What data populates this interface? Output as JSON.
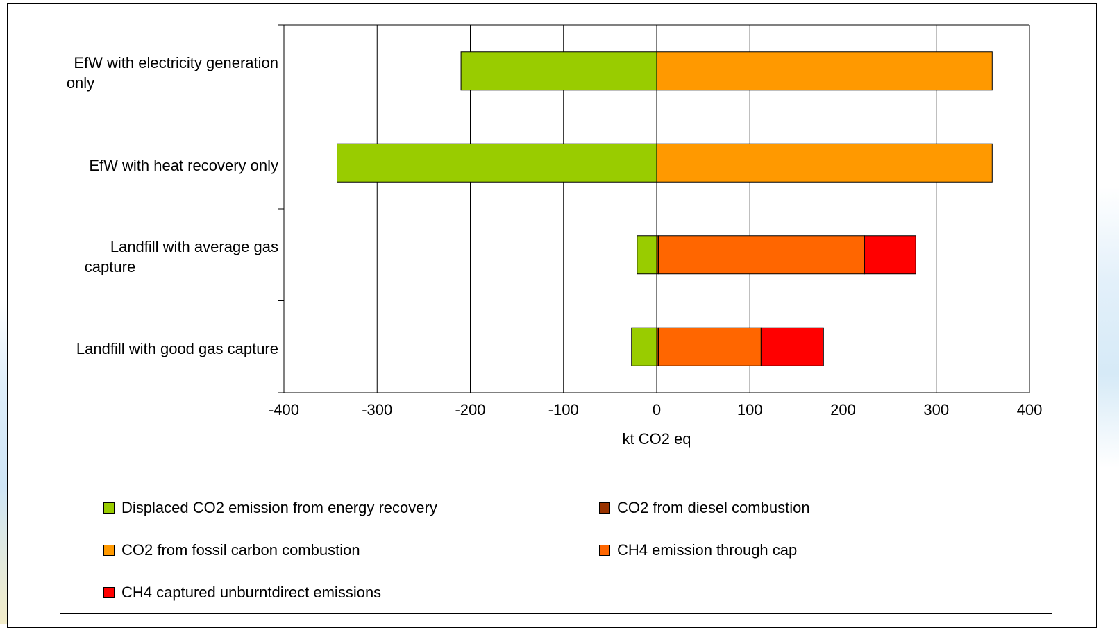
{
  "chart_data": {
    "type": "bar",
    "orientation": "horizontal",
    "stacked": true,
    "categories": [
      "EfW  with electricity generation only",
      "EfW  with heat recovery only",
      "Landfill with average gas capture",
      "Landfill with good gas capture"
    ],
    "series": [
      {
        "name": "Displaced CO2 emission from energy recovery",
        "color": "#99cc00",
        "values": [
          -210,
          -343,
          -21,
          -27
        ]
      },
      {
        "name": "CO2 from diesel combustion",
        "color": "#993300",
        "values": [
          0,
          0,
          2,
          2
        ]
      },
      {
        "name": "CO2 from fossil carbon combustion",
        "color": "#ff9900",
        "values": [
          360,
          360,
          0,
          0
        ]
      },
      {
        "name": "CH4 emission through cap",
        "color": "#ff6600",
        "values": [
          0,
          0,
          221,
          110
        ]
      },
      {
        "name": "CH4 captured unburntdirect emissions",
        "color": "#ff0000",
        "values": [
          0,
          0,
          55,
          67
        ]
      }
    ],
    "xlabel": "kt CO2 eq",
    "ylabel": "",
    "xlim": [
      -400,
      400
    ],
    "xticks": [
      -400,
      -300,
      -200,
      -100,
      0,
      100,
      200,
      300,
      400
    ],
    "grid": true,
    "legend_position": "bottom"
  },
  "labels": {
    "cat0_line1": "EfW  with electricity generation",
    "cat0_line2": "only",
    "cat1_line1": "EfW  with heat recovery only",
    "cat2_line1": "Landfill with average gas",
    "cat2_line2": "capture",
    "cat3_line1": "Landfill with good gas capture"
  }
}
